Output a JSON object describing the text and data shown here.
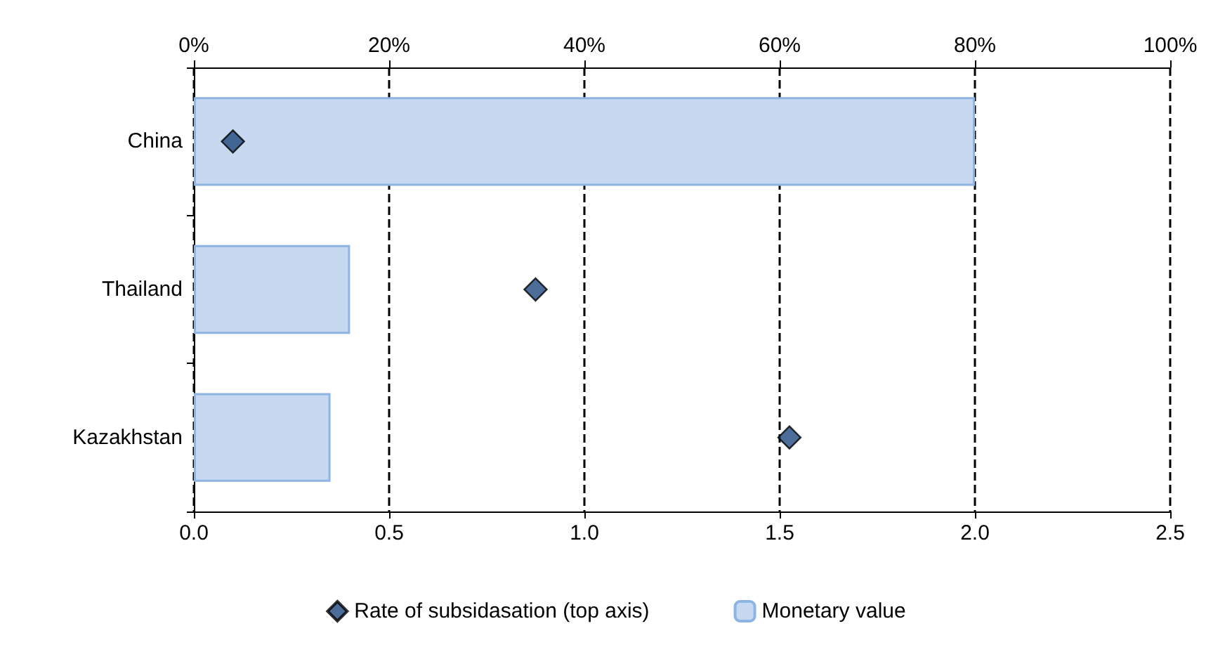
{
  "chart_data": {
    "type": "bar",
    "orientation": "horizontal",
    "categories": [
      "China",
      "Thailand",
      "Kazakhstan"
    ],
    "series": [
      {
        "name": "Rate of subsidasation (top axis)",
        "type": "scatter",
        "axis": "x2",
        "color": "#1f497d",
        "marker": "diamond",
        "values": [
          4,
          35,
          61
        ]
      },
      {
        "name": "Monetary value",
        "color": "#c6d9f1",
        "values": [
          2.0,
          0.4,
          0.35
        ]
      }
    ],
    "xlim": [
      0,
      2.5
    ],
    "xticks": [
      {
        "value": 0,
        "label": "0.0"
      },
      {
        "value": 0.5,
        "label": "0.5"
      },
      {
        "value": 1,
        "label": "1.0"
      },
      {
        "value": 1.5,
        "label": "1.5"
      },
      {
        "value": 2,
        "label": "2.0"
      },
      {
        "value": 2.5,
        "label": "2.5"
      }
    ],
    "x2lim": [
      0,
      100
    ],
    "x2ticks": [
      {
        "value": 0,
        "label": "0%"
      },
      {
        "value": 20,
        "label": "20%"
      },
      {
        "value": 40,
        "label": "40%"
      },
      {
        "value": 60,
        "label": "60%"
      },
      {
        "value": 80,
        "label": "80%"
      },
      {
        "value": 100,
        "label": "100%"
      }
    ],
    "grid": "x",
    "legend": "bottom"
  }
}
